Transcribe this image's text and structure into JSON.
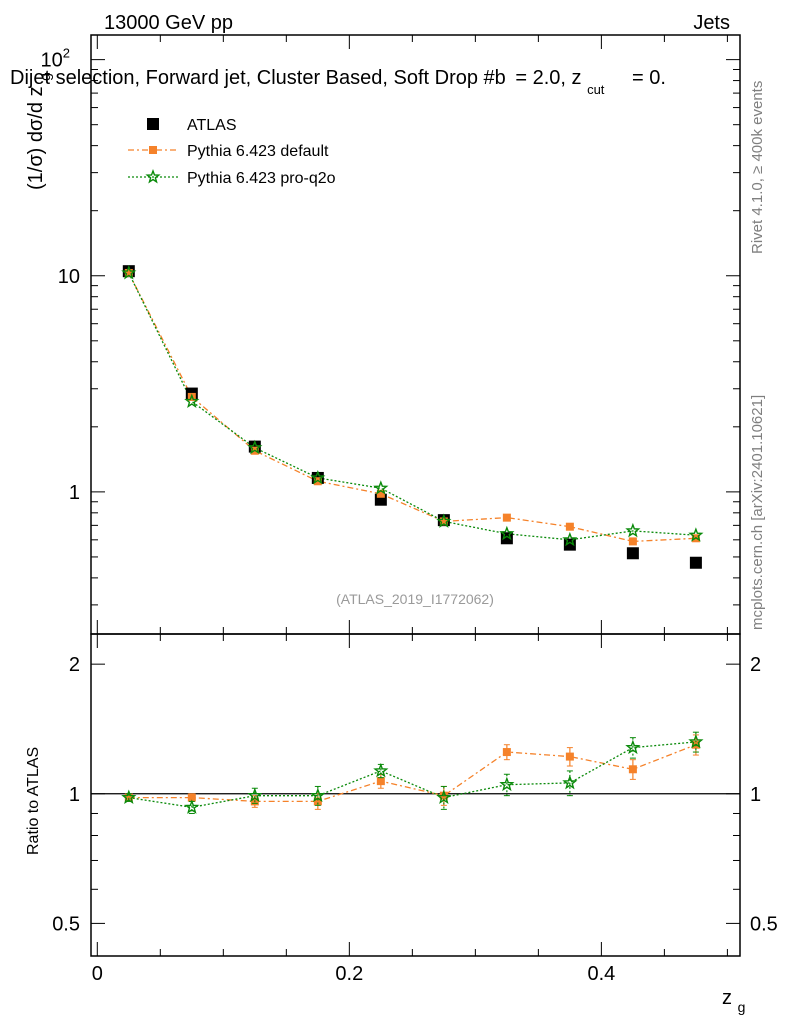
{
  "header": {
    "energy": "13000 GeV pp",
    "category": "Jets",
    "title": "Dijet selection, Forward jet, Cluster Based, Soft Drop #b = 2.0, z_cut = 0.",
    "title_main": "Dijet selection, Forward jet, Cluster Based, Soft Drop #b",
    "title_tail": "= 2.0, z",
    "title_sub": "cut",
    "title_end": "= 0.",
    "side_rivet": "Rivet 4.1.0, ≥ 400k events",
    "side_mcplots": "mcplots.cern.ch [arXiv:2401.10621]",
    "analysis_tag": "(ATLAS_2019_I1772062)"
  },
  "colors": {
    "data": "#000000",
    "pythia_default": "#f5822a",
    "pythia_proq2o": "#0a8a0a"
  },
  "chart_data": [
    {
      "type": "scatter",
      "panel": "main",
      "yscale": "log",
      "ylabel": "(1/σ) dσ/d z_g",
      "ylabel_main": "(1/σ) dσ/d z",
      "ylabel_sub": "g",
      "xlabel": "",
      "xlim": [
        -0.005,
        0.51
      ],
      "ylim": [
        0.22,
        130
      ],
      "yticks": [
        {
          "value": 1,
          "label": "1"
        },
        {
          "value": 10,
          "label": "10"
        },
        {
          "value": 100,
          "label": "10",
          "sup": "2"
        }
      ],
      "x": [
        0.025,
        0.075,
        0.125,
        0.175,
        0.225,
        0.275,
        0.325,
        0.375,
        0.425,
        0.475
      ],
      "legend_position": "top-left",
      "series": [
        {
          "name": "ATLAS",
          "style": "data",
          "values": [
            10.5,
            2.85,
            1.62,
            1.16,
            0.92,
            0.74,
            0.61,
            0.57,
            0.52,
            0.47
          ]
        },
        {
          "name": "Pythia 6.423 default",
          "style": "default",
          "values": [
            10.3,
            2.75,
            1.55,
            1.12,
            0.98,
            0.73,
            0.76,
            0.69,
            0.59,
            0.61
          ]
        },
        {
          "name": "Pythia 6.423 pro-q2o",
          "style": "proq2o",
          "values": [
            10.3,
            2.62,
            1.6,
            1.16,
            1.04,
            0.73,
            0.64,
            0.6,
            0.66,
            0.63
          ]
        }
      ]
    },
    {
      "type": "scatter",
      "panel": "ratio",
      "yscale": "log",
      "ylabel": "Ratio to ATLAS",
      "xlabel": "z_g",
      "xlabel_main": "z",
      "xlabel_sub": "g",
      "xlim": [
        -0.005,
        0.51
      ],
      "ylim": [
        0.42,
        2.35
      ],
      "yticks": [
        {
          "value": 0.5,
          "label": "0.5"
        },
        {
          "value": 1,
          "label": "1"
        },
        {
          "value": 2,
          "label": "2"
        }
      ],
      "xticks": [
        {
          "value": 0,
          "label": "0"
        },
        {
          "value": 0.2,
          "label": "0.2"
        },
        {
          "value": 0.4,
          "label": "0.4"
        }
      ],
      "reference_line": 1,
      "x": [
        0.025,
        0.075,
        0.125,
        0.175,
        0.225,
        0.275,
        0.325,
        0.375,
        0.425,
        0.475
      ],
      "series": [
        {
          "name": "Pythia 6.423 default",
          "style": "default",
          "values": [
            0.98,
            0.98,
            0.96,
            0.96,
            1.07,
            0.99,
            1.25,
            1.22,
            1.14,
            1.3
          ],
          "errors": [
            0.02,
            0.02,
            0.03,
            0.04,
            0.04,
            0.05,
            0.05,
            0.06,
            0.06,
            0.07
          ]
        },
        {
          "name": "Pythia 6.423 pro-q2o",
          "style": "proq2o",
          "values": [
            0.98,
            0.93,
            0.99,
            0.99,
            1.13,
            0.98,
            1.05,
            1.06,
            1.28,
            1.32
          ],
          "errors": [
            0.02,
            0.03,
            0.04,
            0.05,
            0.04,
            0.06,
            0.06,
            0.07,
            0.07,
            0.07
          ]
        }
      ]
    }
  ]
}
